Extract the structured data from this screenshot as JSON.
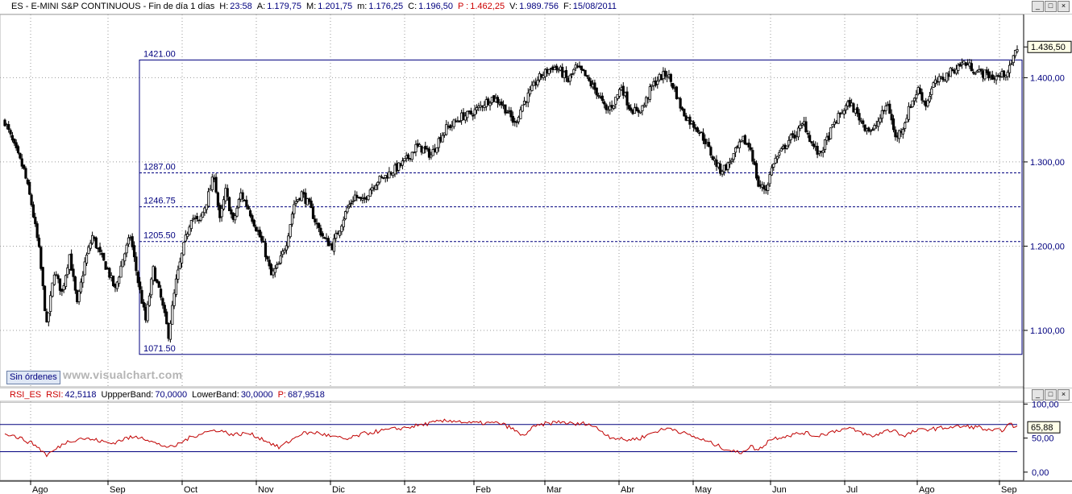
{
  "header": {
    "symbol": "ES - E-MINI S&P CONTINUOUS - Fin de día 1 días",
    "hour_label": "H:",
    "hour": "23:58",
    "open_label": "A:",
    "open": "1.179,75",
    "high_label": "M:",
    "high": "1.201,75",
    "low_label": "m:",
    "low": "1.176,25",
    "close_label": "C:",
    "close": "1.196,50",
    "pos_label": "P :",
    "pos": "1.462,25",
    "volume_label": "V:",
    "volume": "1.989.756",
    "date_label": "F:",
    "date": "15/08/2011"
  },
  "rsi_header": {
    "name": "RSI_ES",
    "rsi_label": "RSI:",
    "rsi": "42,5118",
    "upper_label": "UppperBand:",
    "upper": "70,0000",
    "lower_label": "LowerBand:",
    "lower": "30,0000",
    "p_label": "P:",
    "p": "687,9518"
  },
  "buttons": {
    "orders": "Sin órdenes",
    "minimize": "_",
    "maximize": "□",
    "close": "×"
  },
  "watermark": "www.visualchart.com",
  "colors": {
    "candles": "#000000",
    "levels": "#00007f",
    "rsi_line": "#c00000",
    "rsi_bands": "#00007f",
    "axis_text": "#00007f"
  },
  "chart_data": [
    {
      "type": "candlestick",
      "title": "",
      "x_ticks": [
        "Ago",
        "Sep",
        "Oct",
        "Nov",
        "Dic",
        "12",
        "Feb",
        "Mar",
        "Abr",
        "May",
        "Jun",
        "Jul",
        "Ago",
        "Sep"
      ],
      "y_ticks": [
        "1.100,00",
        "1.200,00",
        "1.300,00",
        "1.400,00"
      ],
      "y_tick_values": [
        1100,
        1200,
        1300,
        1400
      ],
      "ylim": [
        1033,
        1475
      ],
      "grid": true,
      "last_price_label": "1.436,50",
      "last_price": 1436.5,
      "price_waypoints": [
        [
          0,
          1348
        ],
        [
          5,
          1318
        ],
        [
          10,
          1290
        ],
        [
          14,
          1250
        ],
        [
          18,
          1195
        ],
        [
          22,
          1105
        ],
        [
          26,
          1170
        ],
        [
          30,
          1145
        ],
        [
          34,
          1190
        ],
        [
          38,
          1130
        ],
        [
          42,
          1180
        ],
        [
          46,
          1212
        ],
        [
          50,
          1190
        ],
        [
          54,
          1172
        ],
        [
          58,
          1148
        ],
        [
          62,
          1185
        ],
        [
          66,
          1212
        ],
        [
          70,
          1158
        ],
        [
          74,
          1112
        ],
        [
          78,
          1172
        ],
        [
          82,
          1138
        ],
        [
          86,
          1095
        ],
        [
          90,
          1158
        ],
        [
          94,
          1200
        ],
        [
          98,
          1235
        ],
        [
          102,
          1228
        ],
        [
          106,
          1253
        ],
        [
          110,
          1285
        ],
        [
          113,
          1230
        ],
        [
          116,
          1265
        ],
        [
          120,
          1228
        ],
        [
          124,
          1262
        ],
        [
          128,
          1245
        ],
        [
          132,
          1222
        ],
        [
          136,
          1200
        ],
        [
          140,
          1165
        ],
        [
          144,
          1178
        ],
        [
          148,
          1205
        ],
        [
          152,
          1250
        ],
        [
          156,
          1263
        ],
        [
          160,
          1248
        ],
        [
          164,
          1225
        ],
        [
          168,
          1208
        ],
        [
          172,
          1200
        ],
        [
          176,
          1222
        ],
        [
          180,
          1245
        ],
        [
          184,
          1260
        ],
        [
          188,
          1252
        ],
        [
          192,
          1268
        ],
        [
          196,
          1278
        ],
        [
          200,
          1283
        ],
        [
          204,
          1290
        ],
        [
          208,
          1296
        ],
        [
          212,
          1305
        ],
        [
          216,
          1318
        ],
        [
          220,
          1315
        ],
        [
          224,
          1308
        ],
        [
          228,
          1326
        ],
        [
          232,
          1340
        ],
        [
          236,
          1346
        ],
        [
          240,
          1354
        ],
        [
          244,
          1356
        ],
        [
          248,
          1362
        ],
        [
          252,
          1370
        ],
        [
          256,
          1376
        ],
        [
          260,
          1372
        ],
        [
          264,
          1360
        ],
        [
          268,
          1345
        ],
        [
          272,
          1368
        ],
        [
          276,
          1382
        ],
        [
          280,
          1398
        ],
        [
          284,
          1406
        ],
        [
          288,
          1413
        ],
        [
          292,
          1408
        ],
        [
          296,
          1396
        ],
        [
          300,
          1412
        ],
        [
          304,
          1405
        ],
        [
          308,
          1392
        ],
        [
          312,
          1380
        ],
        [
          316,
          1360
        ],
        [
          320,
          1370
        ],
        [
          324,
          1390
        ],
        [
          328,
          1366
        ],
        [
          332,
          1358
        ],
        [
          336,
          1368
        ],
        [
          340,
          1390
        ],
        [
          344,
          1400
        ],
        [
          348,
          1405
        ],
        [
          352,
          1386
        ],
        [
          356,
          1360
        ],
        [
          360,
          1348
        ],
        [
          364,
          1340
        ],
        [
          368,
          1325
        ],
        [
          372,
          1305
        ],
        [
          376,
          1290
        ],
        [
          380,
          1296
        ],
        [
          384,
          1312
        ],
        [
          388,
          1326
        ],
        [
          392,
          1316
        ],
        [
          396,
          1272
        ],
        [
          400,
          1268
        ],
        [
          404,
          1300
        ],
        [
          408,
          1312
        ],
        [
          412,
          1326
        ],
        [
          416,
          1334
        ],
        [
          420,
          1346
        ],
        [
          424,
          1322
        ],
        [
          428,
          1308
        ],
        [
          432,
          1326
        ],
        [
          436,
          1346
        ],
        [
          440,
          1360
        ],
        [
          444,
          1370
        ],
        [
          448,
          1356
        ],
        [
          452,
          1342
        ],
        [
          456,
          1336
        ],
        [
          460,
          1352
        ],
        [
          464,
          1370
        ],
        [
          468,
          1328
        ],
        [
          472,
          1342
        ],
        [
          476,
          1368
        ],
        [
          480,
          1386
        ],
        [
          484,
          1368
        ],
        [
          488,
          1392
        ],
        [
          492,
          1398
        ],
        [
          496,
          1405
        ],
        [
          500,
          1412
        ],
        [
          504,
          1418
        ],
        [
          508,
          1412
        ],
        [
          512,
          1406
        ],
        [
          516,
          1404
        ],
        [
          520,
          1400
        ],
        [
          524,
          1403
        ],
        [
          528,
          1410
        ],
        [
          532,
          1436
        ]
      ],
      "levels": [
        {
          "label": "1421.00",
          "value": 1421.0,
          "style": "solid"
        },
        {
          "label": "1287.00",
          "value": 1287.0,
          "style": "dashed"
        },
        {
          "label": "1246.75",
          "value": 1246.75,
          "style": "dashed"
        },
        {
          "label": "1205.50",
          "value": 1205.5,
          "style": "dashed"
        },
        {
          "label": "1071.50",
          "value": 1071.5,
          "style": "solid"
        }
      ]
    },
    {
      "type": "line",
      "title": "",
      "y_ticks": [
        "0,00",
        "50,00",
        "100,00"
      ],
      "y_tick_values": [
        0,
        50,
        100
      ],
      "ylim": [
        -12,
        104
      ],
      "bands": [
        70,
        30
      ],
      "last_value_label": "65,88",
      "last_value": 65.88,
      "rsi_waypoints": [
        [
          0,
          58
        ],
        [
          8,
          50
        ],
        [
          16,
          40
        ],
        [
          22,
          25
        ],
        [
          26,
          32
        ],
        [
          32,
          44
        ],
        [
          40,
          50
        ],
        [
          48,
          47
        ],
        [
          56,
          42
        ],
        [
          64,
          50
        ],
        [
          72,
          52
        ],
        [
          80,
          41
        ],
        [
          88,
          36
        ],
        [
          96,
          49
        ],
        [
          104,
          58
        ],
        [
          112,
          62
        ],
        [
          120,
          55
        ],
        [
          128,
          57
        ],
        [
          136,
          48
        ],
        [
          144,
          36
        ],
        [
          150,
          46
        ],
        [
          156,
          57
        ],
        [
          164,
          58
        ],
        [
          172,
          52
        ],
        [
          180,
          48
        ],
        [
          188,
          56
        ],
        [
          196,
          60
        ],
        [
          204,
          63
        ],
        [
          212,
          66
        ],
        [
          220,
          70
        ],
        [
          228,
          74
        ],
        [
          236,
          76
        ],
        [
          244,
          72
        ],
        [
          252,
          72
        ],
        [
          260,
          72
        ],
        [
          266,
          65
        ],
        [
          272,
          53
        ],
        [
          278,
          66
        ],
        [
          284,
          71
        ],
        [
          292,
          74
        ],
        [
          300,
          70
        ],
        [
          306,
          72
        ],
        [
          312,
          63
        ],
        [
          318,
          52
        ],
        [
          326,
          47
        ],
        [
          334,
          50
        ],
        [
          342,
          60
        ],
        [
          350,
          65
        ],
        [
          356,
          58
        ],
        [
          362,
          52
        ],
        [
          370,
          44
        ],
        [
          378,
          35
        ],
        [
          386,
          28
        ],
        [
          392,
          38
        ],
        [
          396,
          32
        ],
        [
          402,
          48
        ],
        [
          408,
          52
        ],
        [
          414,
          55
        ],
        [
          420,
          58
        ],
        [
          426,
          53
        ],
        [
          432,
          57
        ],
        [
          438,
          62
        ],
        [
          444,
          64
        ],
        [
          450,
          58
        ],
        [
          456,
          52
        ],
        [
          462,
          60
        ],
        [
          468,
          62
        ],
        [
          472,
          52
        ],
        [
          478,
          60
        ],
        [
          484,
          63
        ],
        [
          490,
          64
        ],
        [
          496,
          66
        ],
        [
          504,
          67
        ],
        [
          512,
          66
        ],
        [
          518,
          60
        ],
        [
          524,
          62
        ],
        [
          528,
          70
        ],
        [
          532,
          66
        ]
      ]
    }
  ]
}
